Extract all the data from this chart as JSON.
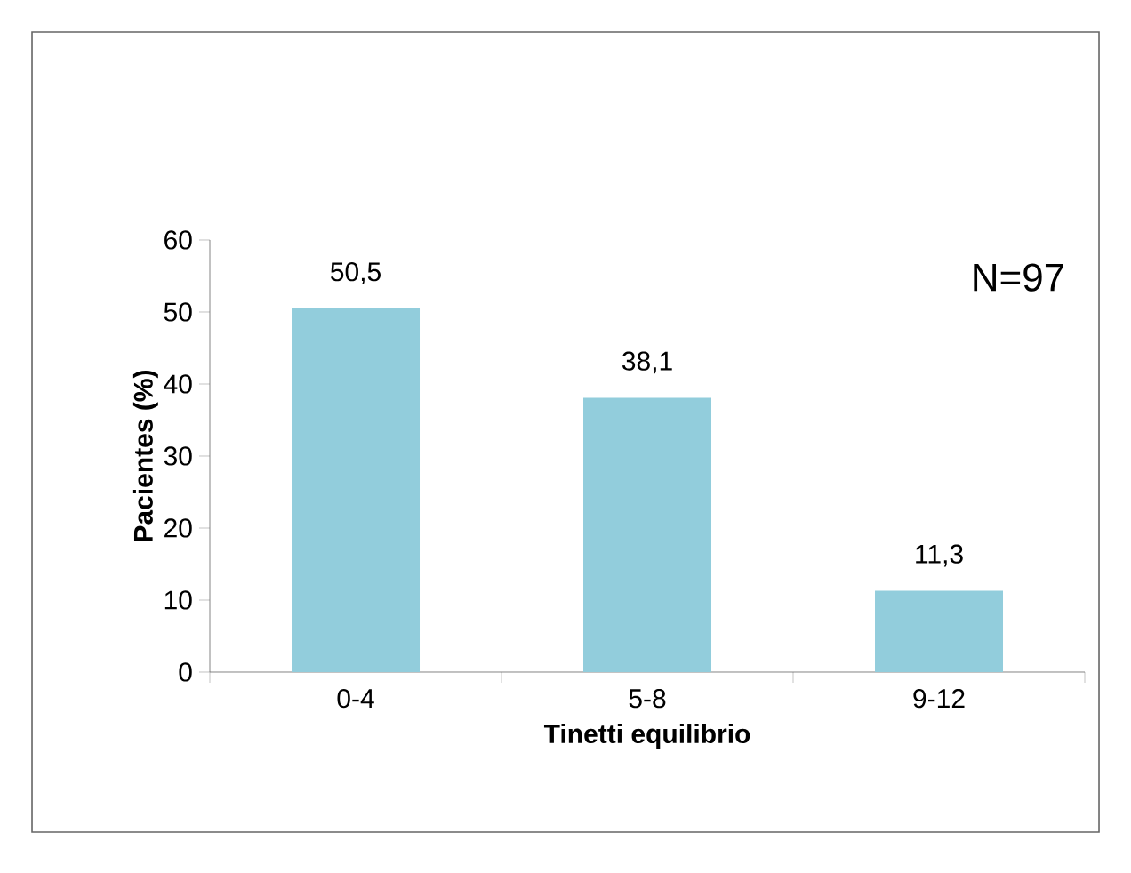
{
  "chart_data": {
    "type": "bar",
    "xlabel": "Tinetti equilibrio",
    "ylabel": "Pacientes (%)",
    "categories": [
      "0-4",
      "5-8",
      "9-12"
    ],
    "values": [
      50.5,
      38.1,
      11.3
    ],
    "value_labels": [
      "50,5",
      "38,1",
      "11,3"
    ],
    "color": "#92cddc",
    "ylim": [
      0,
      60
    ],
    "yticks": [
      0,
      10,
      20,
      30,
      40,
      50,
      60
    ],
    "annotations": [
      "N=97"
    ]
  }
}
